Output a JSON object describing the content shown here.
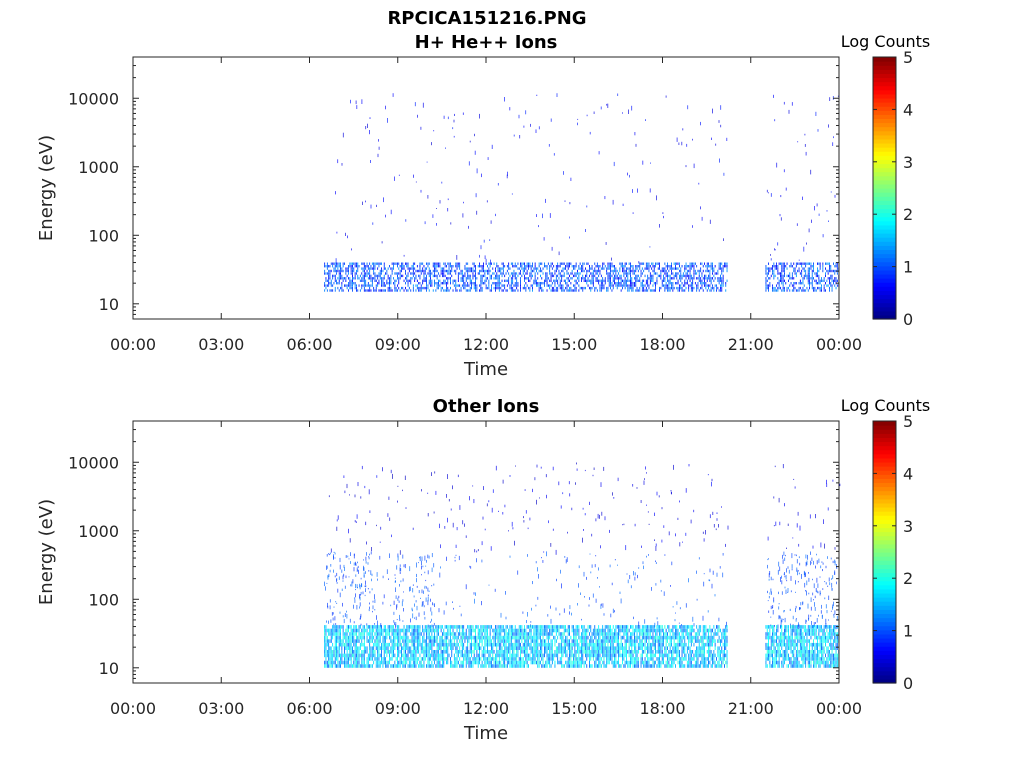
{
  "figure_title": "RPCICA151216.PNG",
  "chart_data": [
    {
      "type": "heatmap",
      "title": "H+ He++ Ions",
      "xlabel": "Time",
      "ylabel": "Energy (eV)",
      "x_ticks": [
        "00:00",
        "03:00",
        "06:00",
        "09:00",
        "12:00",
        "15:00",
        "18:00",
        "21:00",
        "00:00"
      ],
      "xlim_hours": [
        0,
        24
      ],
      "y_scale": "log",
      "y_ticks": [
        10,
        100,
        1000,
        10000
      ],
      "y_tick_labels": [
        "10",
        "100",
        "1000",
        "10000"
      ],
      "ylim": [
        6,
        40000
      ],
      "colorbar": {
        "label": "Log Counts",
        "range": [
          0,
          5
        ],
        "ticks": [
          "0",
          "1",
          "2",
          "3",
          "4",
          "5"
        ],
        "colormap": "jet"
      },
      "data_segments_hours": [
        [
          6.5,
          20.2
        ],
        [
          21.5,
          24.0
        ]
      ],
      "data_gap_hours": [
        20.2,
        21.5
      ],
      "regions": [
        {
          "name": "low-energy band",
          "energy_range_eV": [
            15,
            40
          ],
          "log_counts": 1.0
        },
        {
          "name": "sparse counts",
          "energy_range_eV": [
            40,
            12000
          ],
          "log_counts": 0.4
        }
      ]
    },
    {
      "type": "heatmap",
      "title": "Other Ions",
      "xlabel": "Time",
      "ylabel": "Energy (eV)",
      "x_ticks": [
        "00:00",
        "03:00",
        "06:00",
        "09:00",
        "12:00",
        "15:00",
        "18:00",
        "21:00",
        "00:00"
      ],
      "xlim_hours": [
        0,
        24
      ],
      "y_scale": "log",
      "y_ticks": [
        10,
        100,
        1000,
        10000
      ],
      "y_tick_labels": [
        "10",
        "100",
        "1000",
        "10000"
      ],
      "ylim": [
        6,
        40000
      ],
      "colorbar": {
        "label": "Log Counts",
        "range": [
          0,
          5
        ],
        "ticks": [
          "0",
          "1",
          "2",
          "3",
          "4",
          "5"
        ],
        "colormap": "jet"
      },
      "data_segments_hours": [
        [
          6.5,
          20.2
        ],
        [
          21.5,
          24.0
        ]
      ],
      "data_gap_hours": [
        20.2,
        21.5
      ],
      "regions": [
        {
          "name": "low-energy band",
          "energy_range_eV": [
            10,
            42
          ],
          "log_counts": 1.6
        },
        {
          "name": "bursts",
          "energy_range_eV": [
            42,
            500
          ],
          "log_counts": 0.8
        },
        {
          "name": "sparse counts",
          "energy_range_eV": [
            500,
            10000
          ],
          "log_counts": 0.3
        }
      ]
    }
  ]
}
